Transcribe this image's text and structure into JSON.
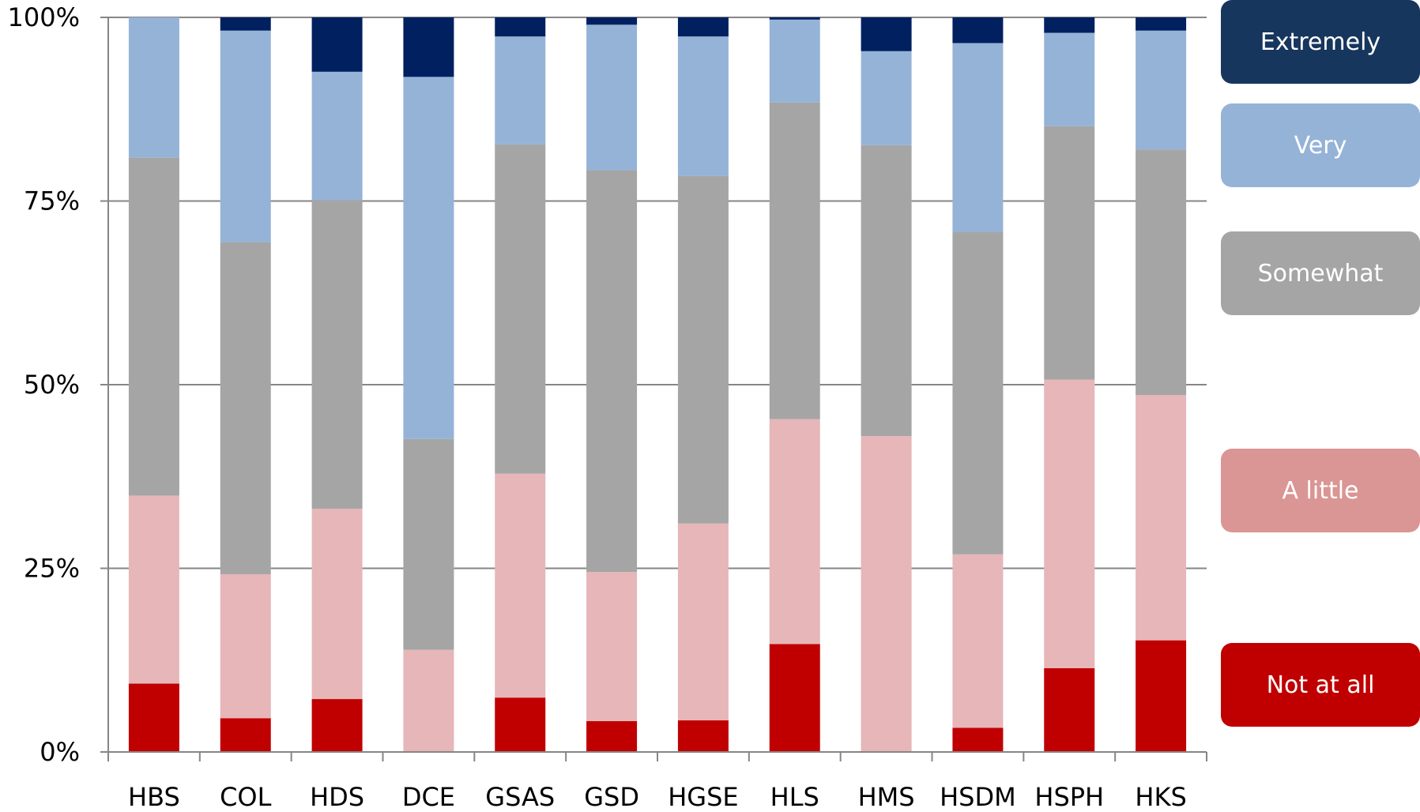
{
  "chart_data": {
    "type": "bar",
    "stacked": "100%",
    "categories": [
      "HBS",
      "COL",
      "HDS",
      "DCE",
      "GSAS",
      "GSD",
      "HGSE",
      "HLS",
      "HMS",
      "HSDM",
      "HSPH",
      "HKS"
    ],
    "y_ticks": [
      "0%",
      "25%",
      "50%",
      "75%",
      "100%"
    ],
    "ylim": [
      0,
      100
    ],
    "grid": "horizontal",
    "legend_position": "right",
    "series": [
      {
        "name": "Not at all",
        "color": "#c00000",
        "values": [
          9.3,
          4.6,
          7.2,
          0,
          7.4,
          4.2,
          4.3,
          14.7,
          0,
          3.3,
          11.4,
          15.2
        ]
      },
      {
        "name": "A little",
        "color": "#e6b6b8",
        "values": [
          25.6,
          19.6,
          25.9,
          13.9,
          30.5,
          20.3,
          26.8,
          30.6,
          43.0,
          23.6,
          39.3,
          33.4
        ]
      },
      {
        "name": "Somewhat",
        "color": "#a5a5a5",
        "values": [
          46.0,
          45.2,
          42.0,
          28.7,
          44.8,
          54.7,
          47.3,
          43.1,
          39.6,
          43.9,
          34.5,
          33.4
        ]
      },
      {
        "name": "Very",
        "color": "#95b3d7",
        "values": [
          19.1,
          28.8,
          17.5,
          49.3,
          14.7,
          19.8,
          19.0,
          11.3,
          12.8,
          25.7,
          12.7,
          16.2
        ]
      },
      {
        "name": "Extremely",
        "color": "#002060",
        "values": [
          0,
          1.8,
          7.4,
          8.1,
          2.6,
          1.0,
          2.6,
          0.3,
          4.6,
          3.5,
          2.1,
          1.8
        ]
      }
    ]
  },
  "legend": [
    {
      "label": "Extremely",
      "color": "#17365d"
    },
    {
      "label": "Very",
      "color": "#95b3d7"
    },
    {
      "label": "Somewhat",
      "color": "#a5a5a5"
    },
    {
      "label": "A little",
      "color": "#da9694"
    },
    {
      "label": "Not at all",
      "color": "#c00000"
    }
  ]
}
